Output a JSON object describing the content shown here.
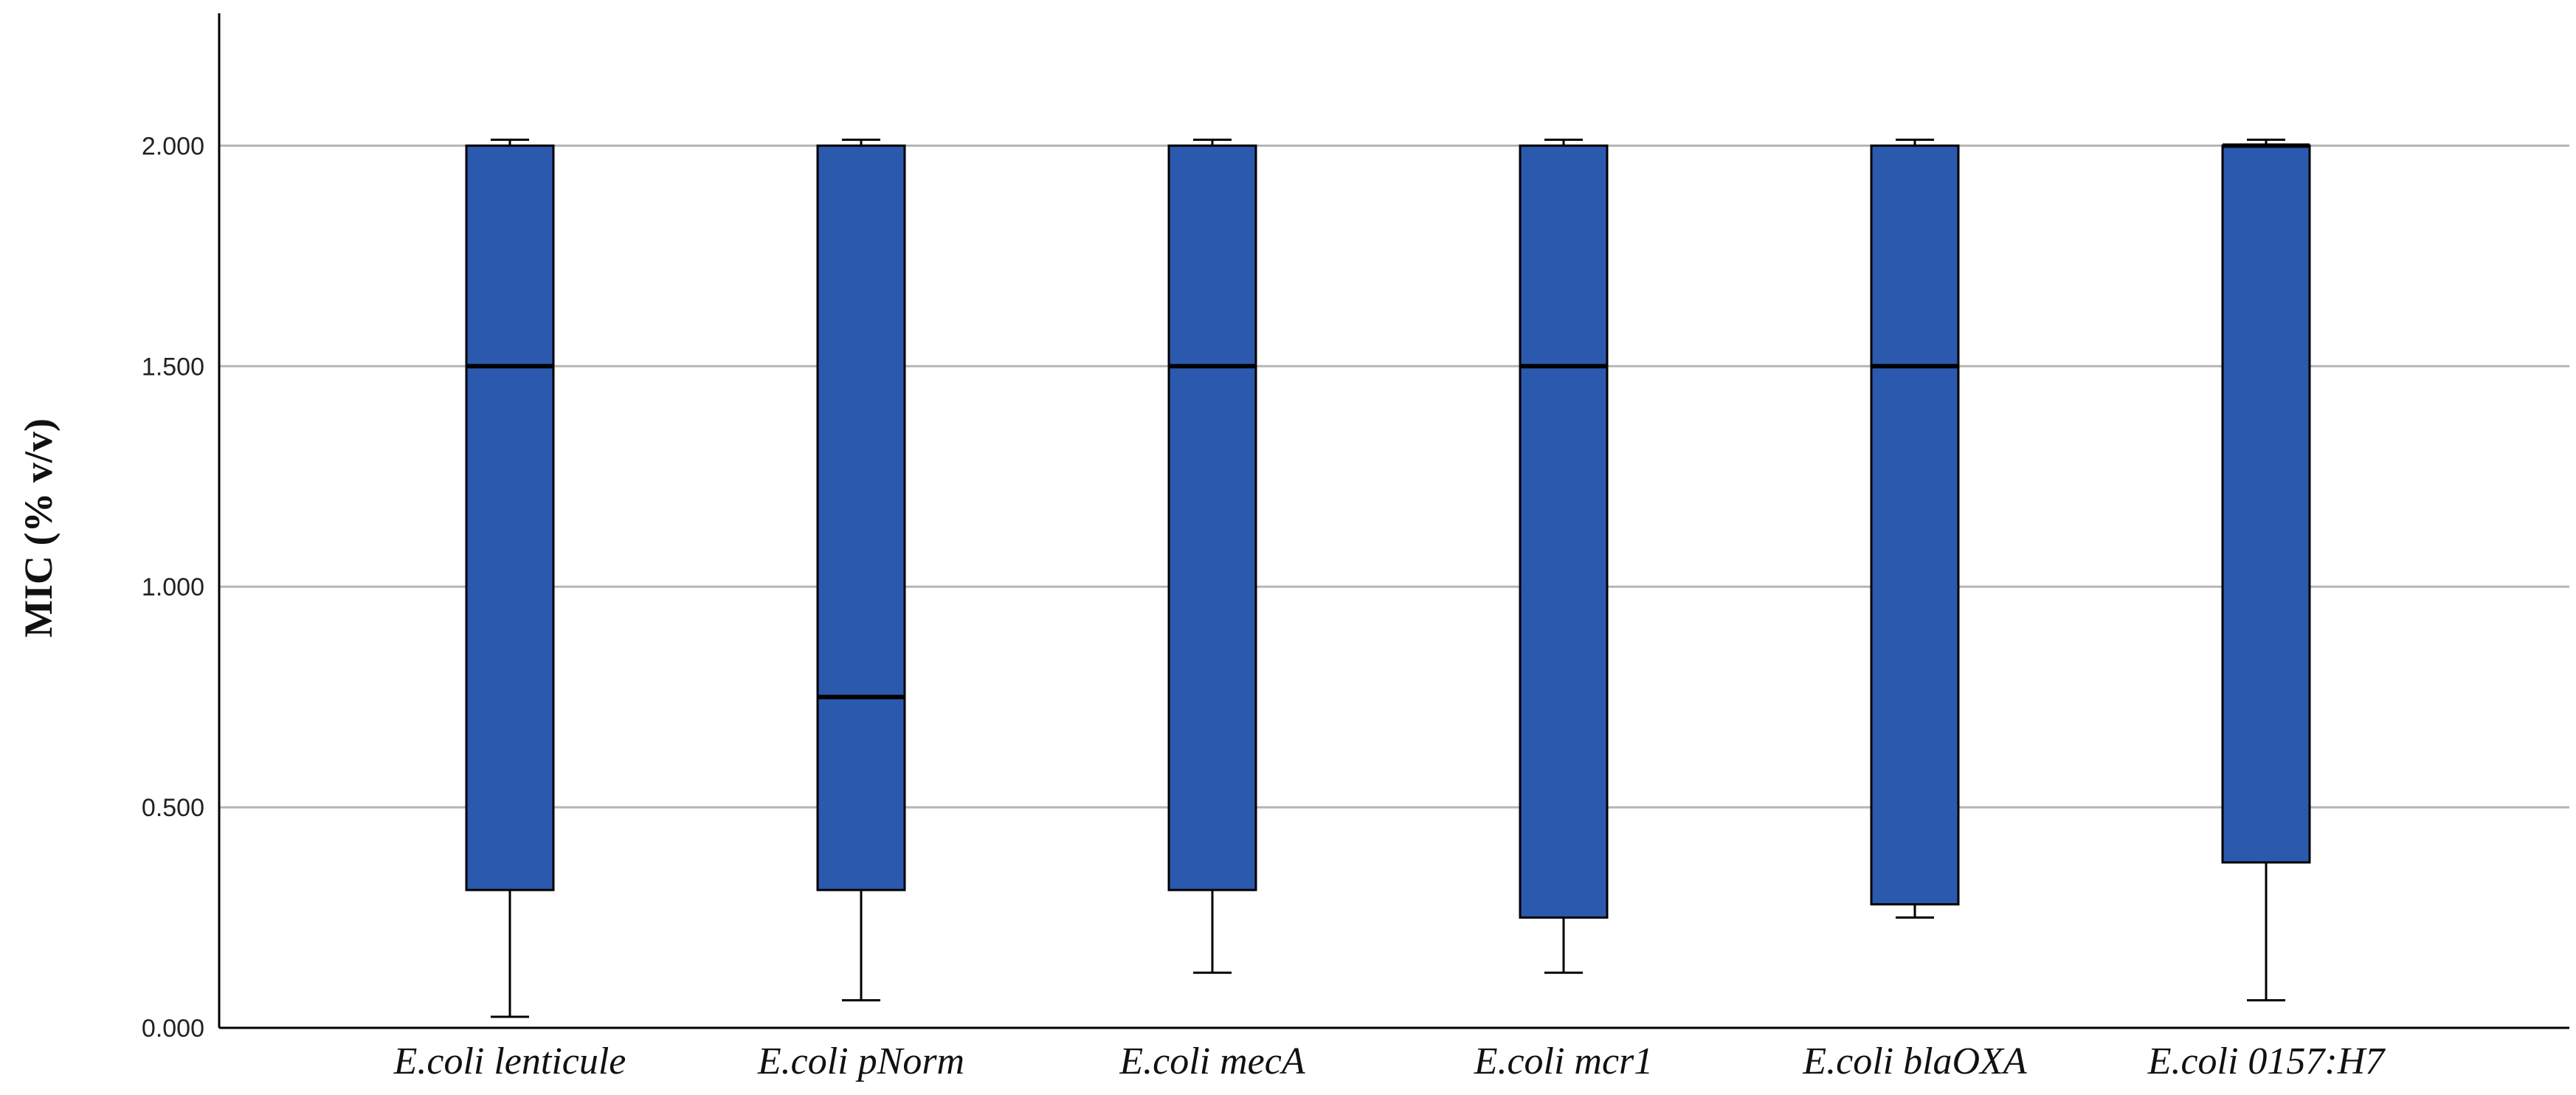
{
  "chart_data": {
    "type": "box",
    "title": "",
    "xlabel": "",
    "ylabel": "MIC (% v/v)",
    "ylim": [
      0,
      2.3
    ],
    "yticks": [
      "0.000",
      "0.500",
      "1.000",
      "1.500",
      "2.000"
    ],
    "ytick_values": [
      0,
      0.5,
      1.0,
      1.5,
      2.0
    ],
    "grid": "horizontal",
    "box_color": "#2b59ad",
    "categories": [
      "E.coli lenticule",
      "E.coli pNorm",
      "E.coli mecA",
      "E.coli mcr1",
      "E.coli blaOXA",
      "E.coli 0157:H7"
    ],
    "boxes": [
      {
        "whisker_low": 0.025,
        "q1": 0.3125,
        "median": 1.5,
        "q3": 2.0,
        "whisker_high": 2.0
      },
      {
        "whisker_low": 0.0625,
        "q1": 0.3125,
        "median": 0.75,
        "q3": 2.0,
        "whisker_high": 2.0
      },
      {
        "whisker_low": 0.125,
        "q1": 0.3125,
        "median": 1.5,
        "q3": 2.0,
        "whisker_high": 2.0
      },
      {
        "whisker_low": 0.125,
        "q1": 0.25,
        "median": 1.5,
        "q3": 2.0,
        "whisker_high": 2.0
      },
      {
        "whisker_low": 0.25,
        "q1": 0.28,
        "median": 1.5,
        "q3": 2.0,
        "whisker_high": 2.0
      },
      {
        "whisker_low": 0.0625,
        "q1": 0.375,
        "median": 2.0,
        "q3": 2.0,
        "whisker_high": 2.0
      }
    ]
  }
}
